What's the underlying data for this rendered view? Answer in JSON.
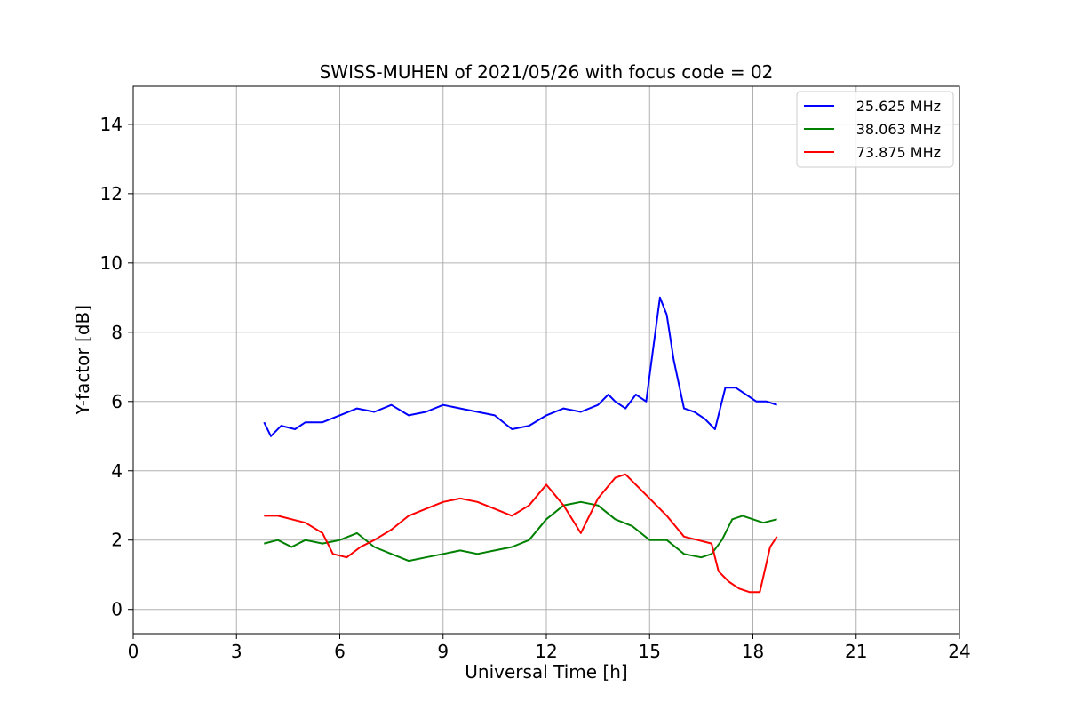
{
  "chart_data": {
    "type": "line",
    "title": "SWISS-MUHEN of 2021/05/26 with focus code = 02",
    "xlabel": "Universal Time [h]",
    "ylabel": "Y-factor [dB]",
    "xlim": [
      0,
      24
    ],
    "ylim": [
      -0.7,
      15.1
    ],
    "xticks": [
      0,
      3,
      6,
      9,
      12,
      15,
      18,
      21,
      24
    ],
    "yticks": [
      0,
      2,
      4,
      6,
      8,
      10,
      12,
      14
    ],
    "grid": true,
    "legend_position": "top-right",
    "series": [
      {
        "name": "25.625 MHz",
        "color": "#0000ff",
        "x": [
          3.8,
          4.0,
          4.3,
          4.7,
          5.0,
          5.5,
          6.0,
          6.5,
          7.0,
          7.5,
          8.0,
          8.5,
          9.0,
          9.5,
          10.0,
          10.5,
          11.0,
          11.5,
          12.0,
          12.5,
          13.0,
          13.5,
          13.8,
          14.0,
          14.3,
          14.6,
          14.9,
          15.1,
          15.3,
          15.5,
          15.7,
          16.0,
          16.3,
          16.6,
          16.9,
          17.2,
          17.5,
          17.8,
          18.1,
          18.4,
          18.7
        ],
        "y": [
          5.4,
          5.0,
          5.3,
          5.2,
          5.4,
          5.4,
          5.6,
          5.8,
          5.7,
          5.9,
          5.6,
          5.7,
          5.9,
          5.8,
          5.7,
          5.6,
          5.2,
          5.3,
          5.6,
          5.8,
          5.7,
          5.9,
          6.2,
          6.0,
          5.8,
          6.2,
          6.0,
          7.5,
          9.0,
          8.5,
          7.2,
          5.8,
          5.7,
          5.5,
          5.2,
          6.4,
          6.4,
          6.2,
          6.0,
          6.0,
          5.9
        ]
      },
      {
        "name": "38.063 MHz",
        "color": "#008000",
        "x": [
          3.8,
          4.2,
          4.6,
          5.0,
          5.5,
          6.0,
          6.5,
          7.0,
          7.5,
          8.0,
          8.5,
          9.0,
          9.5,
          10.0,
          10.5,
          11.0,
          11.5,
          12.0,
          12.5,
          13.0,
          13.5,
          14.0,
          14.5,
          15.0,
          15.5,
          16.0,
          16.5,
          16.8,
          17.1,
          17.4,
          17.7,
          18.0,
          18.3,
          18.7
        ],
        "y": [
          1.9,
          2.0,
          1.8,
          2.0,
          1.9,
          2.0,
          2.2,
          1.8,
          1.6,
          1.4,
          1.5,
          1.6,
          1.7,
          1.6,
          1.7,
          1.8,
          2.0,
          2.6,
          3.0,
          3.1,
          3.0,
          2.6,
          2.4,
          2.0,
          2.0,
          1.6,
          1.5,
          1.6,
          2.0,
          2.6,
          2.7,
          2.6,
          2.5,
          2.6
        ]
      },
      {
        "name": "73.875 MHz",
        "color": "#ff0000",
        "x": [
          3.8,
          4.2,
          4.6,
          5.0,
          5.5,
          5.8,
          6.2,
          6.6,
          7.0,
          7.5,
          8.0,
          8.5,
          9.0,
          9.5,
          10.0,
          10.5,
          11.0,
          11.5,
          12.0,
          12.5,
          13.0,
          13.5,
          14.0,
          14.3,
          14.6,
          15.0,
          15.5,
          16.0,
          16.4,
          16.8,
          17.0,
          17.3,
          17.6,
          17.9,
          18.2,
          18.5,
          18.7
        ],
        "y": [
          2.7,
          2.7,
          2.6,
          2.5,
          2.2,
          1.6,
          1.5,
          1.8,
          2.0,
          2.3,
          2.7,
          2.9,
          3.1,
          3.2,
          3.1,
          2.9,
          2.7,
          3.0,
          3.6,
          3.0,
          2.2,
          3.2,
          3.8,
          3.9,
          3.6,
          3.2,
          2.7,
          2.1,
          2.0,
          1.9,
          1.1,
          0.8,
          0.6,
          0.5,
          0.5,
          1.8,
          2.1
        ]
      }
    ]
  }
}
